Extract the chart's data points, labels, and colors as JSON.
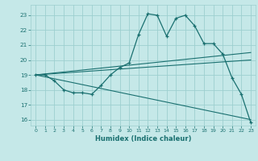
{
  "xlabel": "Humidex (Indice chaleur)",
  "xlim": [
    -0.5,
    23.5
  ],
  "ylim": [
    15.6,
    23.7
  ],
  "yticks": [
    16,
    17,
    18,
    19,
    20,
    21,
    22,
    23
  ],
  "xticks": [
    0,
    1,
    2,
    3,
    4,
    5,
    6,
    7,
    8,
    9,
    10,
    11,
    12,
    13,
    14,
    15,
    16,
    17,
    18,
    19,
    20,
    21,
    22,
    23
  ],
  "background_color": "#c5e8e8",
  "grid_color": "#9dcfcf",
  "line_color": "#1a7070",
  "line1_x": [
    0,
    1,
    2,
    3,
    4,
    5,
    6,
    7,
    8,
    9,
    10,
    11,
    12,
    13,
    14,
    15,
    16,
    17,
    18,
    19,
    20,
    21,
    22,
    23
  ],
  "line1_y": [
    19.0,
    19.0,
    18.6,
    18.0,
    17.8,
    17.8,
    17.7,
    18.3,
    19.0,
    19.5,
    19.8,
    21.7,
    23.1,
    23.0,
    21.6,
    22.8,
    23.0,
    22.3,
    21.1,
    21.1,
    20.4,
    18.8,
    17.7,
    15.8
  ],
  "line2_x": [
    0,
    23
  ],
  "line2_y": [
    19.0,
    20.5
  ],
  "line3_x": [
    0,
    23
  ],
  "line3_y": [
    19.0,
    20.0
  ],
  "line4_x": [
    0,
    23
  ],
  "line4_y": [
    19.0,
    16.0
  ]
}
